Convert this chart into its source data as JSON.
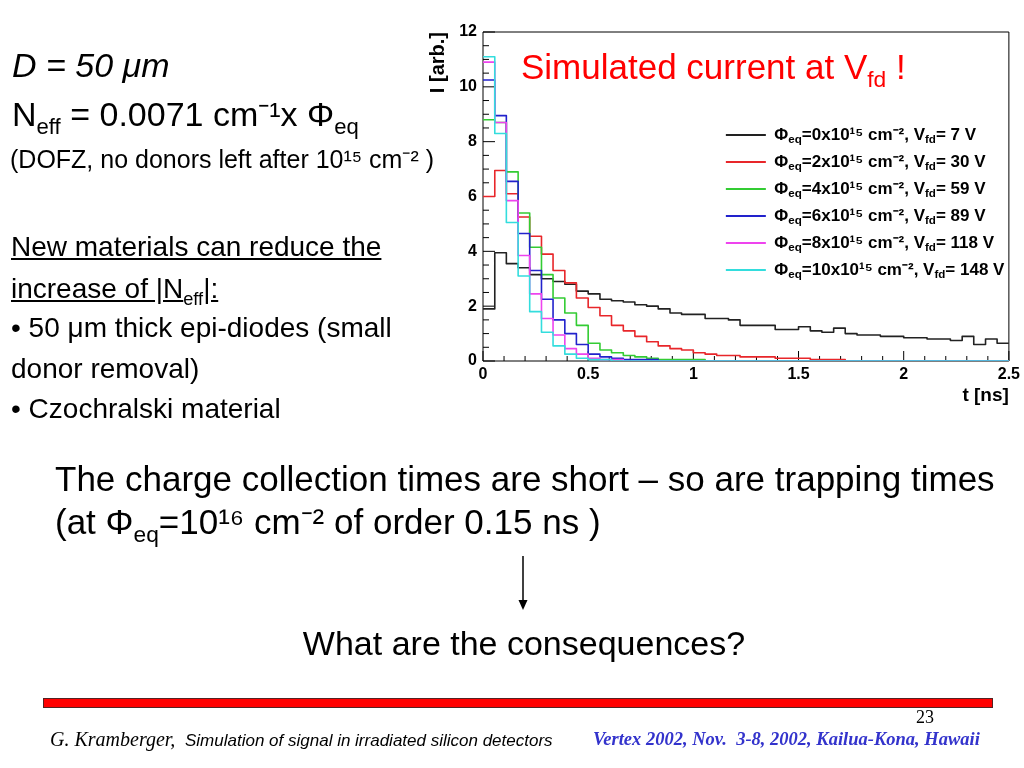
{
  "chart_data": {
    "type": "histogram",
    "title": "Simulated current at V$_{fd}$ !",
    "xlabel": "t [ns]",
    "ylabel": "I [arb.]",
    "bins": [
      0,
      0.056,
      0.111,
      0.167,
      0.222,
      0.278,
      0.333,
      0.389,
      0.444,
      0.5,
      0.556,
      0.611,
      0.667,
      0.722,
      0.778,
      0.833,
      0.889,
      0.944,
      1,
      1.056,
      1.111,
      1.167,
      1.222,
      1.278,
      1.333,
      1.389,
      1.444,
      1.5,
      1.556,
      1.611,
      1.667,
      1.722,
      1.778,
      1.833,
      1.889,
      1.944,
      2,
      2.056,
      2.111,
      2.167,
      2.222,
      2.278,
      2.333,
      2.389,
      2.444,
      2.5
    ],
    "series": [
      {
        "name": "Φ$_{eq}$=0x10¹⁵ cm⁻², V$_{fd}$= 7 V",
        "color": "#222222",
        "values": [
          1.9,
          3.95,
          3.55,
          3.4,
          3.15,
          3.0,
          2.9,
          2.8,
          2.55,
          2.45,
          2.25,
          2.2,
          2.15,
          2.05,
          2.0,
          1.9,
          1.75,
          1.7,
          1.7,
          1.55,
          1.55,
          1.5,
          1.3,
          1.3,
          1.3,
          1.15,
          1.15,
          1.25,
          1.1,
          1.05,
          1.2,
          1.0,
          0.95,
          0.95,
          0.9,
          0.9,
          0.85,
          0.85,
          0.8,
          0.8,
          0.75,
          0.9,
          0.6,
          0.8,
          0.65
        ]
      },
      {
        "name": "Φ$_{eq}$=2x10¹⁵ cm⁻², V$_{fd}$= 30 V",
        "color": "#e8262a",
        "values": [
          6.0,
          6.95,
          6.1,
          5.25,
          4.55,
          3.9,
          3.3,
          2.85,
          2.3,
          1.95,
          1.65,
          1.3,
          1.1,
          0.9,
          0.7,
          0.55,
          0.45,
          0.4,
          0.3,
          0.25,
          0.2,
          0.2,
          0.15,
          0.15,
          0.15,
          0.1,
          0.1,
          0.1,
          0.05,
          0.05,
          0.05,
          0,
          0,
          0,
          0,
          0,
          0,
          0,
          0,
          0,
          0,
          0,
          0,
          0,
          0
        ]
      },
      {
        "name": "Φ$_{eq}$=4x10¹⁵ cm⁻², V$_{fd}$= 59 V",
        "color": "#33cc33",
        "values": [
          8.8,
          8.7,
          6.9,
          5.4,
          4.15,
          3.15,
          2.3,
          1.75,
          1.3,
          0.65,
          0.4,
          0.3,
          0.2,
          0.15,
          0.1,
          0.05,
          0.05,
          0.05,
          0.05,
          0,
          0,
          0,
          0,
          0,
          0,
          0,
          0,
          0,
          0,
          0,
          0,
          0,
          0,
          0,
          0,
          0,
          0,
          0,
          0,
          0,
          0,
          0,
          0,
          0,
          0
        ]
      },
      {
        "name": "Φ$_{eq}$=6x10¹⁵ cm⁻², V$_{fd}$= 89 V",
        "color": "#2222cc",
        "values": [
          10.25,
          8.95,
          6.55,
          4.65,
          3.3,
          2.25,
          1.5,
          1.0,
          0.6,
          0.25,
          0.15,
          0.1,
          0.05,
          0.05,
          0.05,
          0,
          0,
          0,
          0,
          0,
          0,
          0,
          0,
          0,
          0,
          0,
          0,
          0,
          0,
          0,
          0,
          0,
          0,
          0,
          0,
          0,
          0,
          0,
          0,
          0,
          0,
          0,
          0,
          0,
          0
        ]
      },
      {
        "name": "Φ$_{eq}$=8x10¹⁵ cm⁻², V$_{fd}$= 118 V",
        "color": "#ee44ee",
        "values": [
          10.9,
          8.7,
          5.85,
          3.85,
          2.45,
          1.55,
          0.95,
          0.45,
          0.25,
          0.1,
          0.05,
          0.05,
          0,
          0,
          0,
          0,
          0,
          0,
          0,
          0,
          0,
          0,
          0,
          0,
          0,
          0,
          0,
          0,
          0,
          0,
          0,
          0,
          0,
          0,
          0,
          0,
          0,
          0,
          0,
          0,
          0,
          0,
          0,
          0,
          0
        ]
      },
      {
        "name": "Φ$_{eq}$=10x10¹⁵ cm⁻², V$_{fd}$= 148 V",
        "color": "#33dddd",
        "values": [
          11.1,
          8.3,
          5.05,
          3.1,
          1.8,
          1.05,
          0.55,
          0.25,
          0.1,
          0.05,
          0.05,
          0,
          0,
          0,
          0,
          0,
          0,
          0,
          0,
          0,
          0,
          0,
          0,
          0,
          0,
          0,
          0,
          0,
          0,
          0,
          0,
          0,
          0,
          0,
          0,
          0,
          0,
          0,
          0,
          0,
          0,
          0,
          0,
          0,
          0
        ]
      }
    ],
    "xlim": [
      0,
      2.5
    ],
    "xticks": [
      0,
      {
        "value": 0.1,
        "label": null
      },
      {
        "value": 0.2,
        "label": null
      },
      {
        "value": 0.3,
        "label": null
      },
      {
        "value": 0.4,
        "label": null
      },
      0.5,
      {
        "value": 0.6,
        "label": null
      },
      {
        "value": 0.7,
        "label": null
      },
      {
        "value": 0.8,
        "label": null
      },
      {
        "value": 0.9,
        "label": null
      },
      1,
      {
        "value": 1.1,
        "label": null
      },
      {
        "value": 1.2,
        "label": null
      },
      {
        "value": 1.3,
        "label": null
      },
      {
        "value": 1.4,
        "label": null
      },
      1.5,
      {
        "value": 1.6,
        "label": null
      },
      {
        "value": 1.7,
        "label": null
      },
      {
        "value": 1.8,
        "label": null
      },
      {
        "value": 1.9,
        "label": null
      },
      2,
      {
        "value": 2.1,
        "label": null
      },
      {
        "value": 2.2,
        "label": null
      },
      {
        "value": 2.3,
        "label": null
      },
      {
        "value": 2.4,
        "label": null
      },
      2.5
    ],
    "ylim": [
      0,
      12
    ],
    "yticks": [
      0,
      {
        "value": 0.5,
        "label": null
      },
      {
        "value": 1,
        "label": null
      },
      {
        "value": 1.5,
        "label": null
      },
      2,
      {
        "value": 2.5,
        "label": null
      },
      {
        "value": 3,
        "label": null
      },
      {
        "value": 3.5,
        "label": null
      },
      4,
      {
        "value": 4.5,
        "label": null
      },
      {
        "value": 5,
        "label": null
      },
      {
        "value": 5.5,
        "label": null
      },
      6,
      {
        "value": 6.5,
        "label": null
      },
      {
        "value": 7,
        "label": null
      },
      {
        "value": 7.5,
        "label": null
      },
      8,
      {
        "value": 8.5,
        "label": null
      },
      {
        "value": 9,
        "label": null
      },
      {
        "value": 9.5,
        "label": null
      },
      10,
      {
        "value": 10.5,
        "label": null
      },
      {
        "value": 11,
        "label": null
      },
      {
        "value": 11.5,
        "label": null
      },
      12
    ],
    "legend": "right",
    "annotations": [
      "D = 50 μm",
      "N$_{eff}$ = 0.0071 cm⁻¹x Φ$_{eq}$",
      "(DOFZ, no donors left after 10¹⁵ cm⁻² )",
      "New materials can reduce the increase of |N$_{eff}$|:",
      "• 50 μm thick epi-diodes (small donor removal)",
      "• Czochralski material",
      "The charge collection times are short – so are trapping times (at Φ$_{eq}$=10¹⁶ cm⁻² of order 0.15 ns )",
      "What are the consequences?",
      "23",
      "G. Kramberger,",
      "Simulation of signal in irradiated silicon detectors",
      "Vertex 2002, Nov.  3-8, 2002, Kailua-Kona, Hawaii"
    ]
  }
}
